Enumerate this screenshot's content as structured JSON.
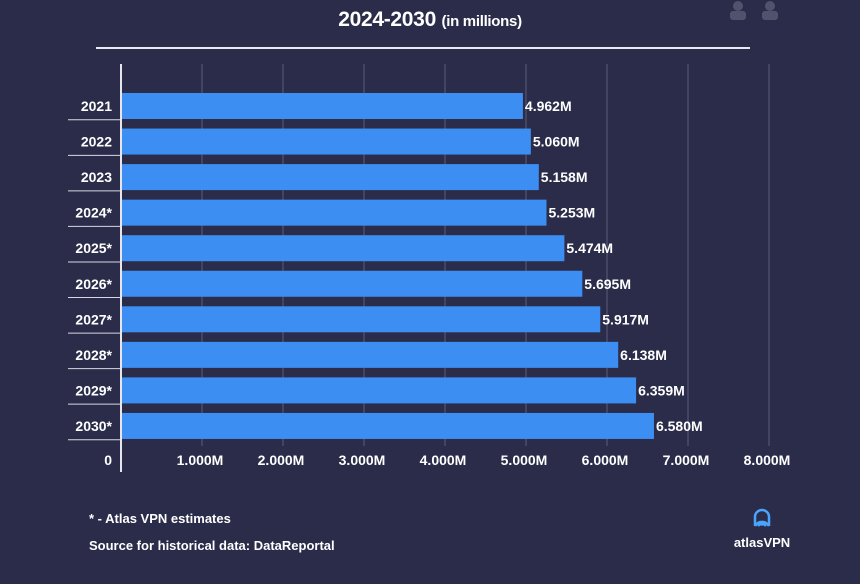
{
  "header": {
    "title": "2024-2030",
    "subtitle": "(in millions)"
  },
  "footer": {
    "note": "* - Atlas VPN estimates",
    "source": "Source for historical data: DataReportal",
    "brand": "atlasVPN"
  },
  "colors": {
    "background": "#2a2c4a",
    "bar": "#3d8ef2",
    "text": "#ffffff",
    "grid": "#5a5c7a",
    "logo_accent": "#4aa3ff"
  },
  "chart_data": {
    "type": "bar",
    "orientation": "horizontal",
    "categories": [
      "2021",
      "2022",
      "2023",
      "2024*",
      "2025*",
      "2026*",
      "2027*",
      "2028*",
      "2029*",
      "2030*"
    ],
    "values": [
      4.962,
      5.06,
      5.158,
      5.253,
      5.474,
      5.695,
      5.917,
      6.138,
      6.359,
      6.58
    ],
    "data_labels": [
      "4.962M",
      "5.060M",
      "5.158M",
      "5.253M",
      "5.474M",
      "5.695M",
      "5.917M",
      "6.138M",
      "6.359M",
      "6.580M"
    ],
    "x_ticks": [
      0,
      1,
      2,
      3,
      4,
      5,
      6,
      7,
      8
    ],
    "x_tick_labels": [
      "0",
      "1.000M",
      "2.000M",
      "3.000M",
      "4.000M",
      "5.000M",
      "6.000M",
      "7.000M",
      "8.000M"
    ],
    "xlim": [
      0,
      8
    ],
    "grid": true,
    "legend": "none"
  }
}
